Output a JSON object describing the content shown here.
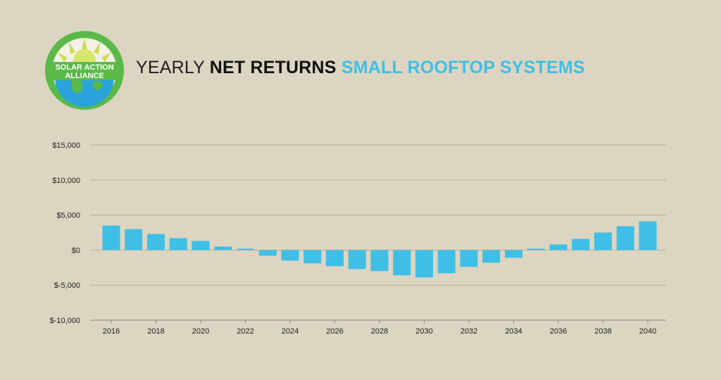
{
  "header": {
    "title_part1": "YEARLY ",
    "title_part2": "NET RETURNS",
    "title_part3": " SMALL ROOFTOP SYSTEMS"
  },
  "logo": {
    "line1": "SOLAR ACTION",
    "line2": "ALLIANCE",
    "ring_color": "#5ab947",
    "globe_color": "#2aa3dc",
    "sun_color": "#c9dd58"
  },
  "chart_data": {
    "type": "bar",
    "title": "YEARLY NET RETURNS SMALL ROOFTOP SYSTEMS",
    "xlabel": "",
    "ylabel": "",
    "ylim": [
      -10000,
      15000
    ],
    "yticks": [
      15000,
      10000,
      5000,
      0,
      -5000,
      -10000
    ],
    "ytick_labels": [
      "$15,000",
      "$10,000",
      "$5,000",
      "$0",
      "$-5,000",
      "$-10,000"
    ],
    "grid": true,
    "bar_color": "#3fbfe6",
    "categories": [
      "2016",
      "2017",
      "2018",
      "2019",
      "2020",
      "2021",
      "2022",
      "2023",
      "2024",
      "2025",
      "2026",
      "2027",
      "2028",
      "2029",
      "2030",
      "2031",
      "2032",
      "2033",
      "2034",
      "2035",
      "2036",
      "2037",
      "2038",
      "2039",
      "2040"
    ],
    "xtick_labels": [
      "2016",
      "2018",
      "2020",
      "2022",
      "2024",
      "2026",
      "2028",
      "2030",
      "2032",
      "2034",
      "2036",
      "2038",
      "2040"
    ],
    "values": [
      3500,
      3000,
      2300,
      1700,
      1300,
      500,
      200,
      -800,
      -1500,
      -1900,
      -2300,
      -2700,
      -3000,
      -3600,
      -3900,
      -3300,
      -2400,
      -1800,
      -1100,
      200,
      800,
      1600,
      2500,
      3400,
      4100
    ]
  }
}
